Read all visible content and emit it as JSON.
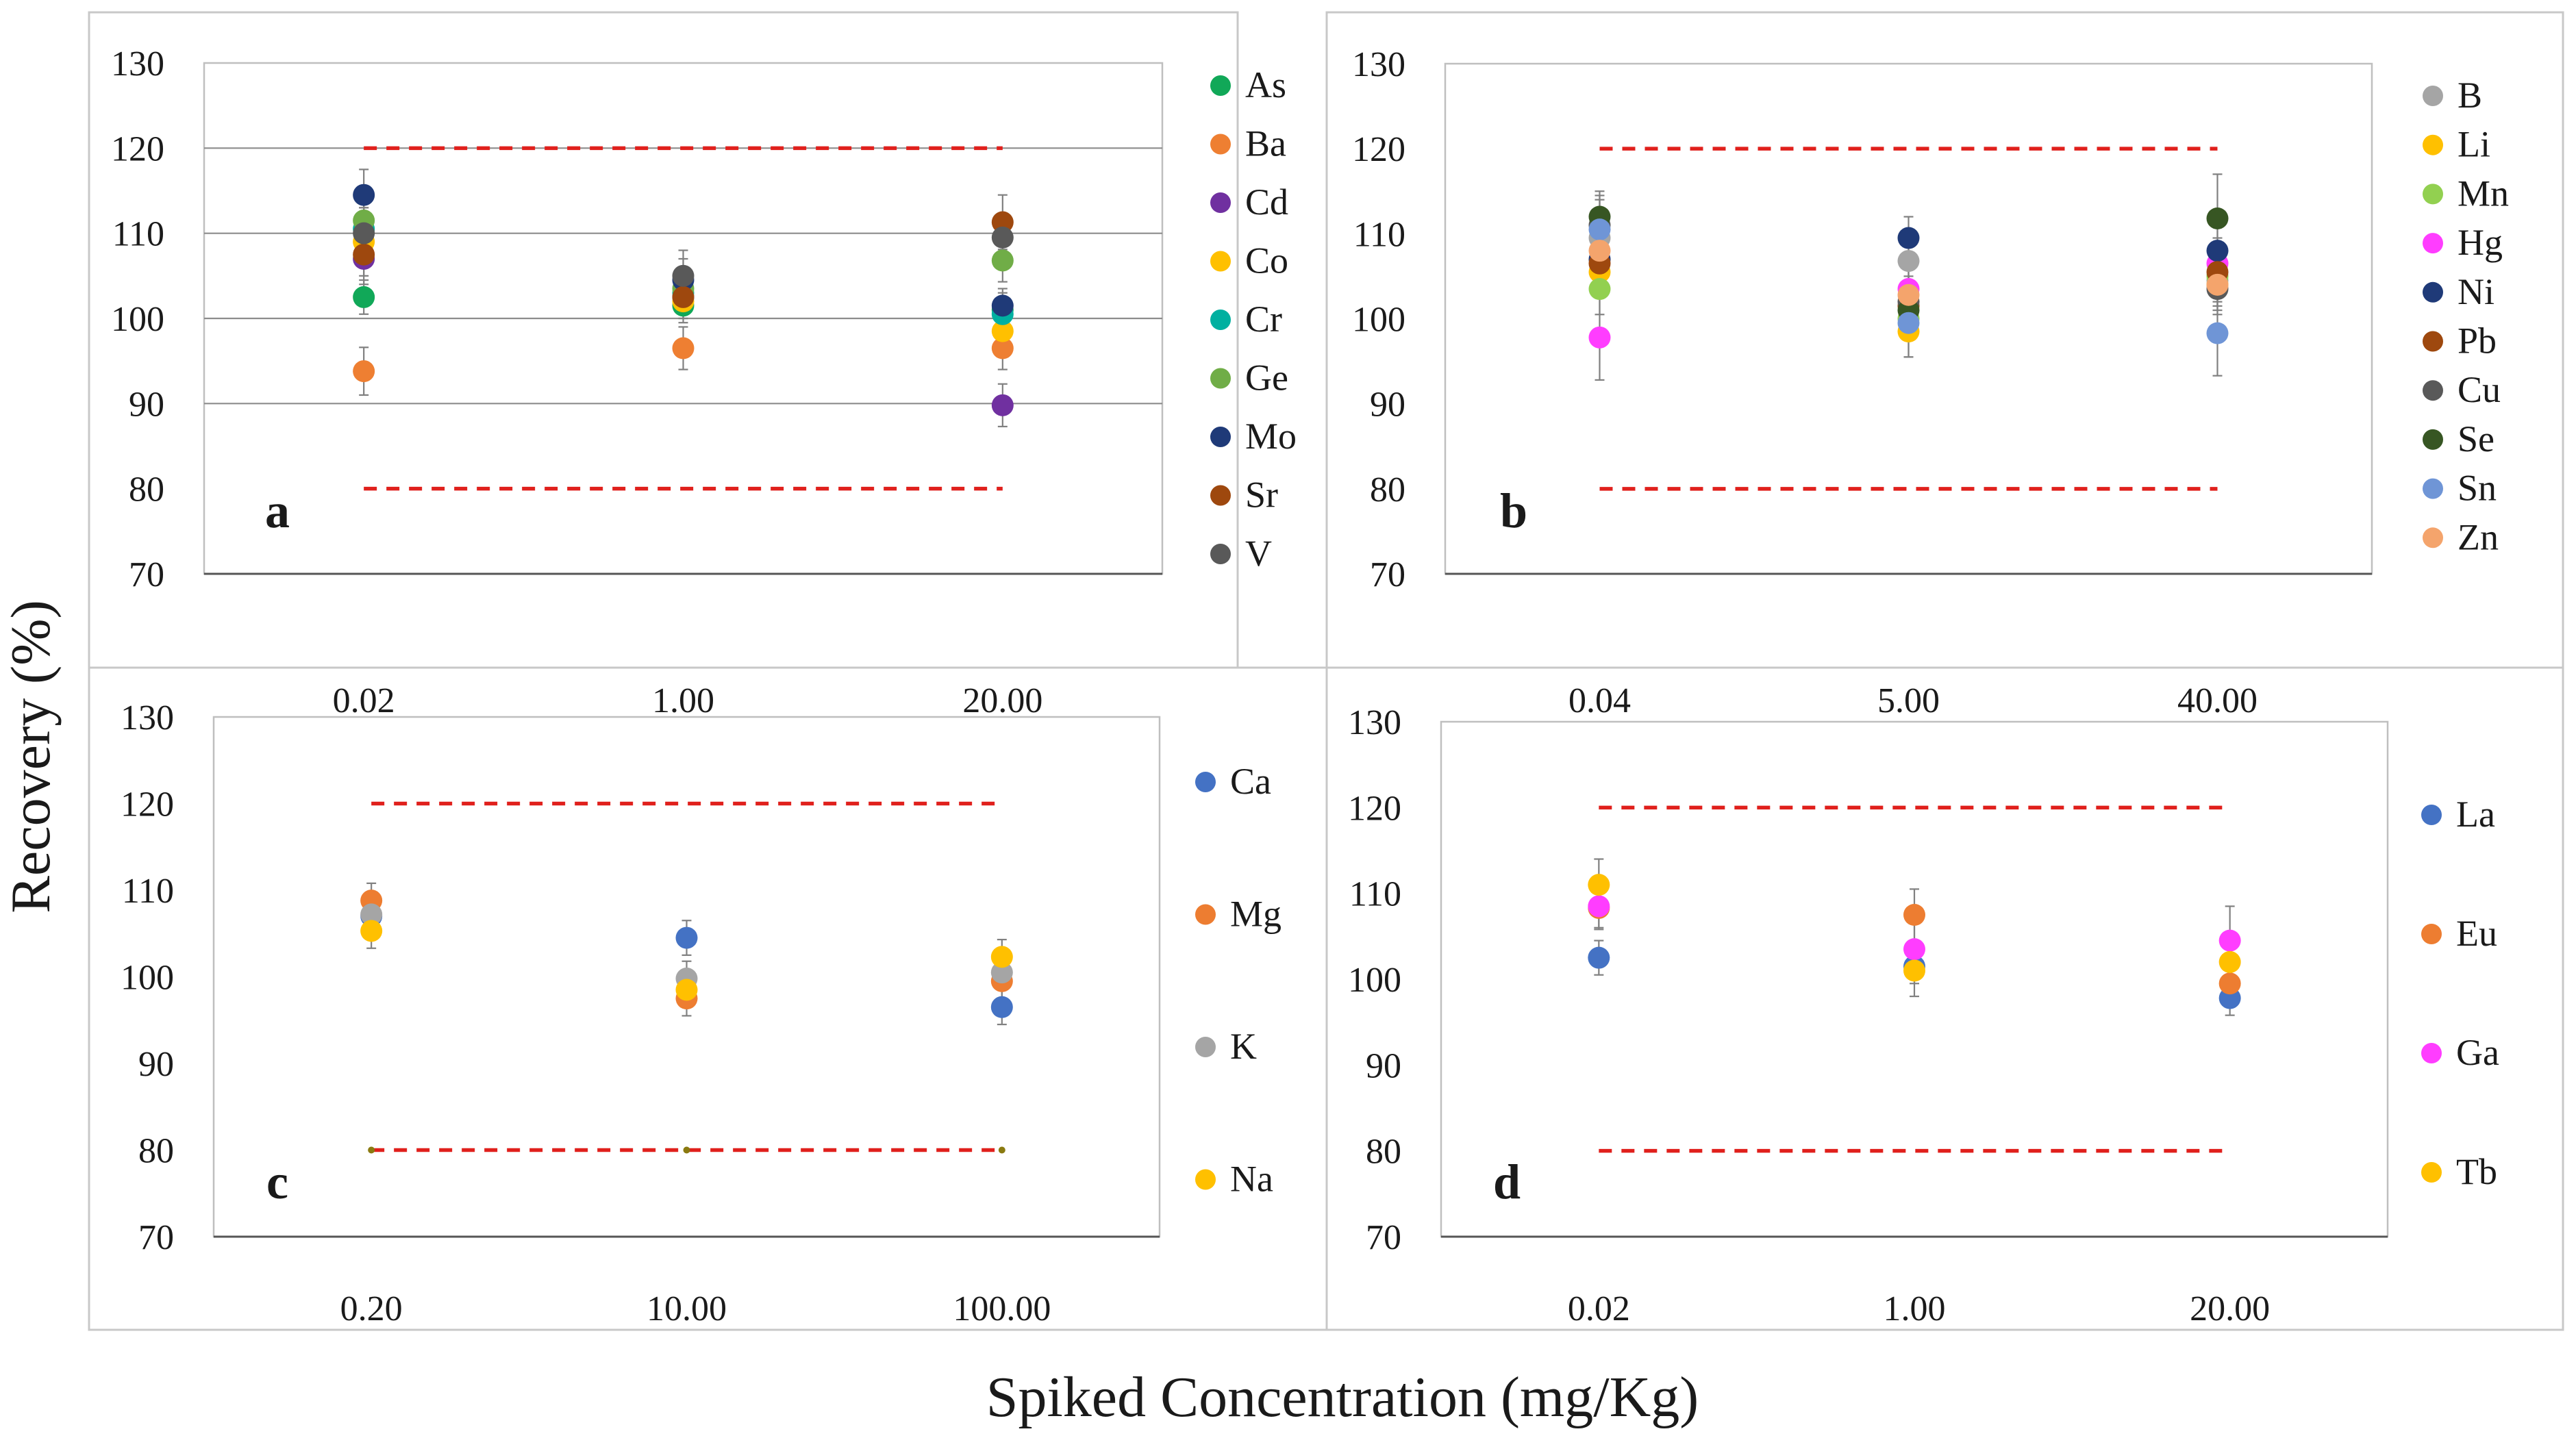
{
  "figure": {
    "ylabel": "Recovery (%)",
    "xlabel": "Spiked Concentration (mg/Kg)"
  },
  "chart_data": [
    {
      "panel": "a",
      "type": "scatter",
      "categories": [
        "0.02",
        "1.00",
        "20.00"
      ],
      "ylim": [
        70,
        130
      ],
      "yticks": [
        70,
        80,
        90,
        100,
        110,
        120,
        130
      ],
      "limits": [
        80,
        120
      ],
      "legend_position": "right",
      "series": [
        {
          "name": "As",
          "color": "#11a858",
          "values": [
            102.5,
            101.5,
            101.0
          ],
          "err": [
            2,
            2,
            2
          ]
        },
        {
          "name": "Ba",
          "color": "#ee7f32",
          "values": [
            93.8,
            96.5,
            96.5
          ],
          "err": [
            2.8,
            2.5,
            2.5
          ]
        },
        {
          "name": "Cd",
          "color": "#7030a0",
          "values": [
            107.0,
            102.5,
            89.8
          ],
          "err": [
            3,
            2,
            2.5
          ]
        },
        {
          "name": "Co",
          "color": "#ffc000",
          "values": [
            109.0,
            102.0,
            98.5
          ],
          "err": [
            2.5,
            2,
            2
          ]
        },
        {
          "name": "Cr",
          "color": "#00b0a0",
          "values": [
            110.5,
            103.0,
            100.5
          ],
          "err": [
            2.5,
            2,
            2
          ]
        },
        {
          "name": "Ge",
          "color": "#70ad47",
          "values": [
            111.5,
            103.5,
            106.8
          ],
          "err": [
            3,
            2,
            2.5
          ]
        },
        {
          "name": "Mo",
          "color": "#1f3a78",
          "values": [
            114.5,
            104.5,
            101.5
          ],
          "err": [
            3,
            2.5,
            2
          ]
        },
        {
          "name": "Sr",
          "color": "#9e480e",
          "values": [
            107.5,
            102.5,
            111.3
          ],
          "err": [
            2.5,
            2.5,
            3.2
          ]
        },
        {
          "name": "V",
          "color": "#595959",
          "values": [
            110.0,
            105.0,
            109.5
          ],
          "err": [
            3,
            3,
            2.5
          ]
        }
      ]
    },
    {
      "panel": "b",
      "type": "scatter",
      "categories": [
        "0.04",
        "5.00",
        "40.00"
      ],
      "ylim": [
        70,
        130
      ],
      "yticks": [
        70,
        80,
        90,
        100,
        110,
        120,
        130
      ],
      "limits": [
        80,
        120
      ],
      "legend_position": "right",
      "series": [
        {
          "name": "B",
          "color": "#a5a5a5",
          "values": [
            109.5,
            106.8,
            104.5
          ],
          "err": [
            3,
            3,
            2.5
          ]
        },
        {
          "name": "Li",
          "color": "#ffc000",
          "values": [
            105.5,
            98.5,
            104.0
          ],
          "err": [
            3,
            3,
            2.5
          ]
        },
        {
          "name": "Mn",
          "color": "#92d050",
          "values": [
            103.5,
            100.0,
            105.0
          ],
          "err": [
            3,
            2.5,
            2.5
          ]
        },
        {
          "name": "Hg",
          "color": "#ff3dff",
          "values": [
            97.8,
            103.5,
            106.5
          ],
          "err": [
            5,
            3,
            3
          ]
        },
        {
          "name": "Ni",
          "color": "#1f3a78",
          "values": [
            107.0,
            109.5,
            108.0
          ],
          "err": [
            3,
            2.5,
            3
          ]
        },
        {
          "name": "Pb",
          "color": "#9e480e",
          "values": [
            106.5,
            101.5,
            105.5
          ],
          "err": [
            3,
            2.5,
            2.5
          ]
        },
        {
          "name": "Cu",
          "color": "#595959",
          "values": [
            111.0,
            102.0,
            103.5
          ],
          "err": [
            3,
            3,
            3
          ]
        },
        {
          "name": "Se",
          "color": "#375623",
          "values": [
            112.0,
            101.0,
            111.8
          ],
          "err": [
            3,
            3,
            5.2
          ]
        },
        {
          "name": "Sn",
          "color": "#6f95d6",
          "values": [
            110.5,
            99.5,
            98.3
          ],
          "err": [
            4,
            4,
            5
          ]
        },
        {
          "name": "Zn",
          "color": "#f4a46c",
          "values": [
            108.0,
            102.8,
            104.0
          ],
          "err": [
            3,
            3,
            3
          ]
        }
      ]
    },
    {
      "panel": "c",
      "type": "scatter",
      "categories": [
        "0.20",
        "10.00",
        "100.00"
      ],
      "ylim": [
        70,
        130
      ],
      "yticks": [
        70,
        80,
        90,
        100,
        110,
        120,
        130
      ],
      "limits": [
        80,
        120
      ],
      "legend_position": "right",
      "series": [
        {
          "name": "Ca",
          "color": "#4472c4",
          "values": [
            107.0,
            104.5,
            96.5
          ],
          "err": [
            2,
            2,
            2
          ]
        },
        {
          "name": "Mg",
          "color": "#ed7d31",
          "values": [
            108.8,
            97.5,
            99.5
          ],
          "err": [
            2,
            2,
            2
          ]
        },
        {
          "name": "K",
          "color": "#a5a5a5",
          "values": [
            107.2,
            99.8,
            100.5
          ],
          "err": [
            2,
            2,
            2
          ]
        },
        {
          "name": "Na",
          "color": "#ffc000",
          "values": [
            105.3,
            98.5,
            102.3
          ],
          "err": [
            2,
            2,
            2
          ]
        }
      ]
    },
    {
      "panel": "d",
      "type": "scatter",
      "categories": [
        "0.02",
        "1.00",
        "20.00"
      ],
      "ylim": [
        70,
        130
      ],
      "yticks": [
        70,
        80,
        90,
        100,
        110,
        120,
        130
      ],
      "limits": [
        80,
        120
      ],
      "legend_position": "right",
      "series": [
        {
          "name": "La",
          "color": "#4472c4",
          "values": [
            102.5,
            101.5,
            97.8
          ],
          "err": [
            2,
            2,
            2
          ]
        },
        {
          "name": "Eu",
          "color": "#ed7d31",
          "values": [
            108.3,
            107.5,
            99.5
          ],
          "err": [
            2.5,
            3,
            2
          ]
        },
        {
          "name": "Ga",
          "color": "#ff3dff",
          "values": [
            108.5,
            103.5,
            104.5
          ],
          "err": [
            2.5,
            3,
            4
          ]
        },
        {
          "name": "Tb",
          "color": "#ffc000",
          "values": [
            111.0,
            101.0,
            102.0
          ],
          "err": [
            3,
            3,
            3
          ]
        }
      ]
    }
  ]
}
